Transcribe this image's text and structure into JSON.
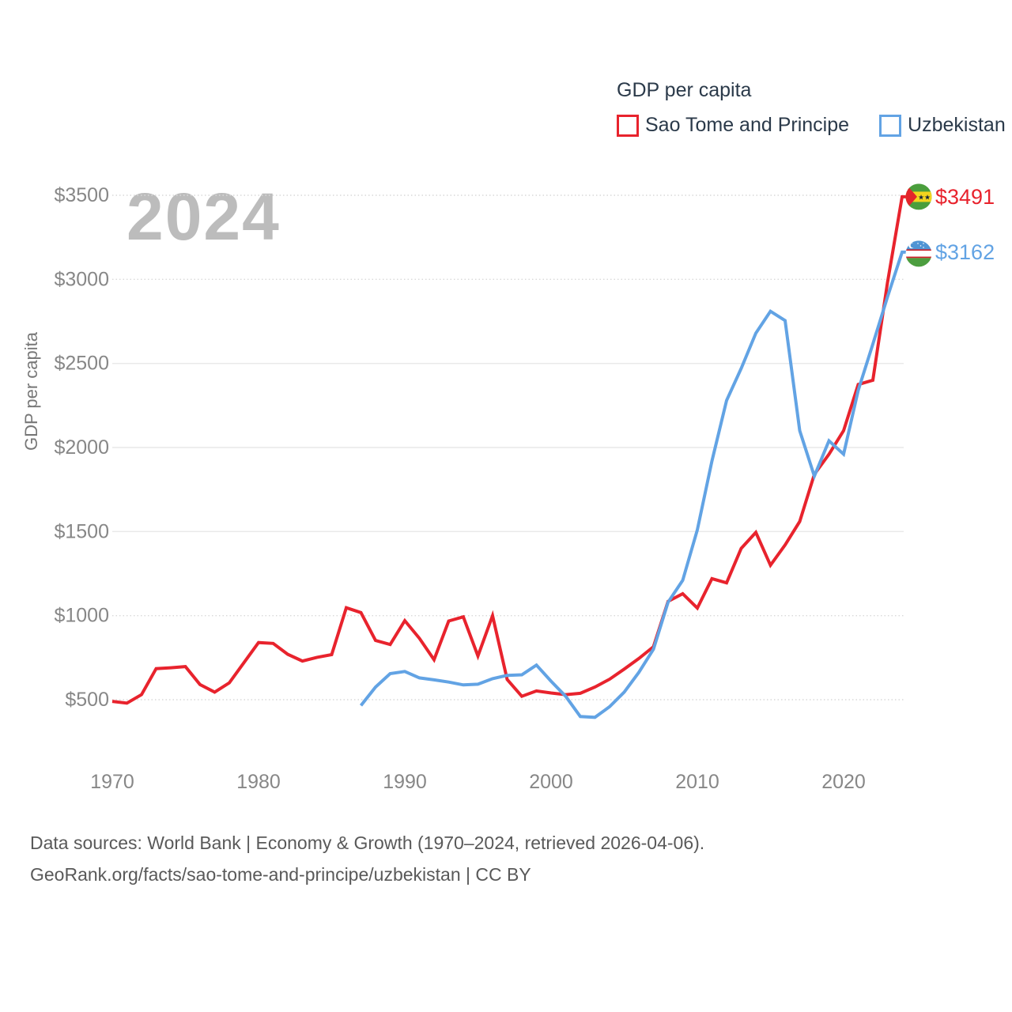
{
  "legend": {
    "title": "GDP per capita",
    "items": [
      {
        "label": "Sao Tome and Principe",
        "color": "#e8232d"
      },
      {
        "label": "Uzbekistan",
        "color": "#62a3e4"
      }
    ]
  },
  "watermark": "2024",
  "y_axis": {
    "title": "GDP per capita",
    "ticks": [
      {
        "label": "$500",
        "value": 500
      },
      {
        "label": "$1000",
        "value": 1000
      },
      {
        "label": "$1500",
        "value": 1500
      },
      {
        "label": "$2000",
        "value": 2000
      },
      {
        "label": "$2500",
        "value": 2500
      },
      {
        "label": "$3000",
        "value": 3000
      },
      {
        "label": "$3500",
        "value": 3500
      }
    ]
  },
  "x_axis": {
    "ticks": [
      {
        "label": "1970",
        "year": 1970
      },
      {
        "label": "1980",
        "year": 1980
      },
      {
        "label": "1990",
        "year": 1990
      },
      {
        "label": "2000",
        "year": 2000
      },
      {
        "label": "2010",
        "year": 2010
      },
      {
        "label": "2020",
        "year": 2020
      }
    ]
  },
  "chart_data": {
    "type": "line",
    "title": "GDP per capita",
    "ylabel": "GDP per capita",
    "ylim": [
      350,
      3600
    ],
    "xlim": [
      1968.5,
      2025.5
    ],
    "grid": true,
    "legend_position": "top-right",
    "series": [
      {
        "name": "Sao Tome and Principe",
        "color": "#e8232d",
        "end_label": "$3491",
        "end_value": 3491,
        "flag_icon": "sao-tome-and-principe-flag-icon",
        "x": [
          1970,
          1971,
          1972,
          1973,
          1974,
          1975,
          1976,
          1977,
          1978,
          1979,
          1980,
          1981,
          1982,
          1983,
          1984,
          1985,
          1986,
          1987,
          1988,
          1989,
          1990,
          1991,
          1992,
          1993,
          1994,
          1995,
          1996,
          1997,
          1998,
          1999,
          2000,
          2001,
          2002,
          2003,
          2004,
          2005,
          2006,
          2007,
          2008,
          2009,
          2010,
          2011,
          2012,
          2013,
          2014,
          2015,
          2016,
          2017,
          2018,
          2019,
          2020,
          2021,
          2022,
          2023,
          2024
        ],
        "values": [
          490,
          480,
          530,
          685,
          690,
          697,
          590,
          545,
          600,
          720,
          840,
          835,
          770,
          730,
          752,
          768,
          1047,
          1018,
          852,
          828,
          970,
          865,
          738,
          968,
          993,
          760,
          1000,
          620,
          520,
          552,
          540,
          530,
          538,
          575,
          622,
          682,
          745,
          815,
          1085,
          1130,
          1045,
          1220,
          1195,
          1400,
          1495,
          1300,
          1420,
          1560,
          1840,
          1960,
          2100,
          2375,
          2400,
          2980,
          3491
        ]
      },
      {
        "name": "Uzbekistan",
        "color": "#62a3e4",
        "end_label": "$3162",
        "end_value": 3162,
        "flag_icon": "uzbekistan-flag-icon",
        "x": [
          1987,
          1988,
          1989,
          1990,
          1991,
          1992,
          1993,
          1994,
          1995,
          1996,
          1997,
          1998,
          1999,
          2000,
          2001,
          2002,
          2003,
          2004,
          2005,
          2006,
          2007,
          2008,
          2009,
          2010,
          2011,
          2012,
          2013,
          2014,
          2015,
          2016,
          2017,
          2018,
          2019,
          2020,
          2021,
          2022,
          2023,
          2024
        ],
        "values": [
          465,
          575,
          655,
          668,
          630,
          618,
          605,
          588,
          592,
          625,
          645,
          648,
          706,
          610,
          520,
          400,
          395,
          458,
          545,
          662,
          800,
          1080,
          1210,
          1510,
          1920,
          2280,
          2470,
          2680,
          2810,
          2755,
          2100,
          1830,
          2040,
          1960,
          2340,
          2615,
          2895,
          3162
        ]
      }
    ]
  },
  "footer": {
    "line1": "Data sources: World Bank | Economy & Growth (1970–2024, retrieved 2026-04-06).",
    "line2": "GeoRank.org/facts/sao-tome-and-principe/uzbekistan | CC BY"
  }
}
